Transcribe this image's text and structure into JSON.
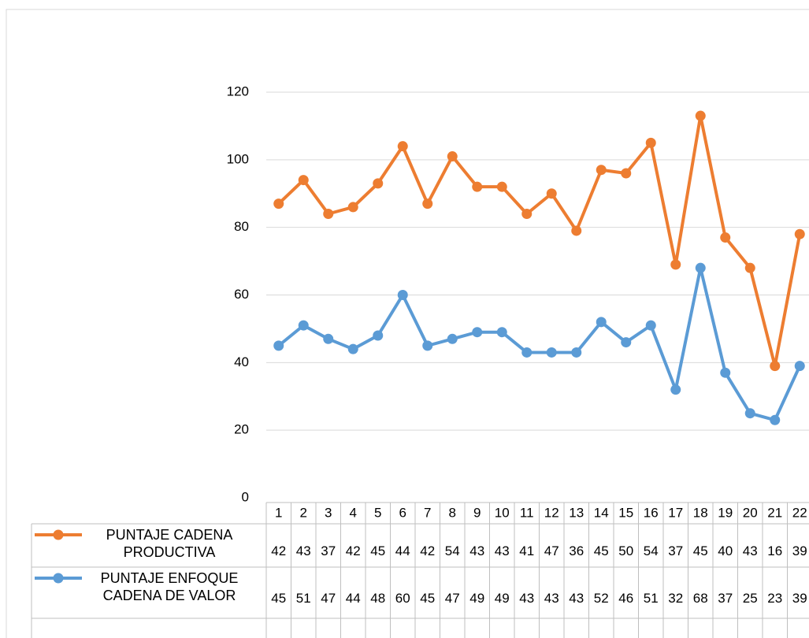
{
  "chart_data": {
    "type": "line",
    "stacked": true,
    "categories": [
      "1",
      "2",
      "3",
      "4",
      "5",
      "6",
      "7",
      "8",
      "9",
      "10",
      "11",
      "12",
      "13",
      "14",
      "15",
      "16",
      "17",
      "18",
      "19",
      "20",
      "21",
      "22"
    ],
    "series": [
      {
        "name": "PUNTAJE CADENA PRODUCTIVA",
        "color": "#ed7d31",
        "values": [
          42,
          43,
          37,
          42,
          45,
          44,
          42,
          54,
          43,
          43,
          41,
          47,
          36,
          45,
          50,
          54,
          37,
          45,
          40,
          43,
          16,
          39
        ]
      },
      {
        "name": "PUNTAJE ENFOQUE CADENA DE VALOR",
        "color": "#5b9bd5",
        "values": [
          45,
          51,
          47,
          44,
          48,
          60,
          45,
          47,
          49,
          49,
          43,
          43,
          43,
          52,
          46,
          51,
          32,
          68,
          37,
          25,
          23,
          39
        ]
      }
    ],
    "ylim": [
      0,
      120
    ],
    "yticks": [
      0,
      20,
      40,
      60,
      80,
      100,
      120
    ],
    "grid": true,
    "data_table": true
  }
}
